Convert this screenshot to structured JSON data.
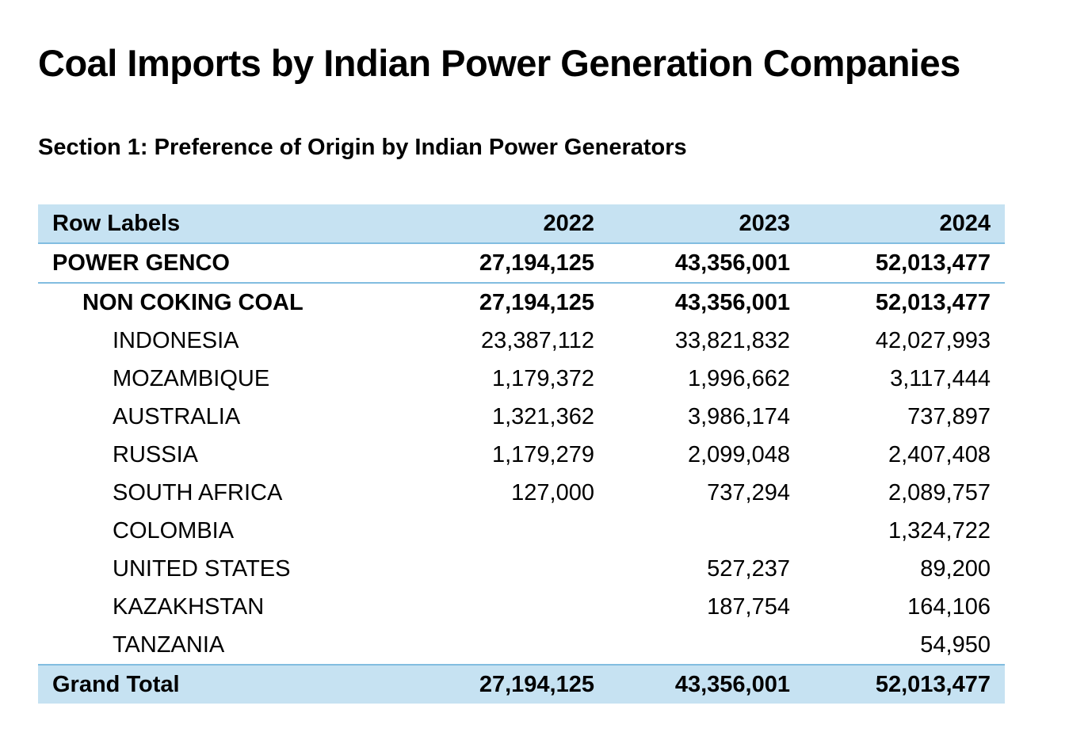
{
  "title": "Coal Imports by Indian Power Generation Companies",
  "section": "Section 1: Preference of Origin by Indian Power Generators",
  "table": {
    "header": [
      "Row Labels",
      "2022",
      "2023",
      "2024"
    ],
    "power_genco": [
      "POWER GENCO",
      "27,194,125",
      "43,356,001",
      "52,013,477"
    ],
    "non_coking": [
      "NON COKING COAL",
      "27,194,125",
      "43,356,001",
      "52,013,477"
    ],
    "countries": [
      [
        "INDONESIA",
        "23,387,112",
        "33,821,832",
        "42,027,993"
      ],
      [
        "MOZAMBIQUE",
        "1,179,372",
        "1,996,662",
        "3,117,444"
      ],
      [
        "AUSTRALIA",
        "1,321,362",
        "3,986,174",
        "737,897"
      ],
      [
        "RUSSIA",
        "1,179,279",
        "2,099,048",
        "2,407,408"
      ],
      [
        "SOUTH AFRICA",
        "127,000",
        "737,294",
        "2,089,757"
      ],
      [
        "COLOMBIA",
        "",
        "",
        "1,324,722"
      ],
      [
        "UNITED STATES",
        "",
        "527,237",
        "89,200"
      ],
      [
        "KAZAKHSTAN",
        "",
        "187,754",
        "164,106"
      ],
      [
        "TANZANIA",
        "",
        "",
        "54,950"
      ]
    ],
    "grand_total": [
      "Grand Total",
      "27,194,125",
      "43,356,001",
      "52,013,477"
    ]
  }
}
